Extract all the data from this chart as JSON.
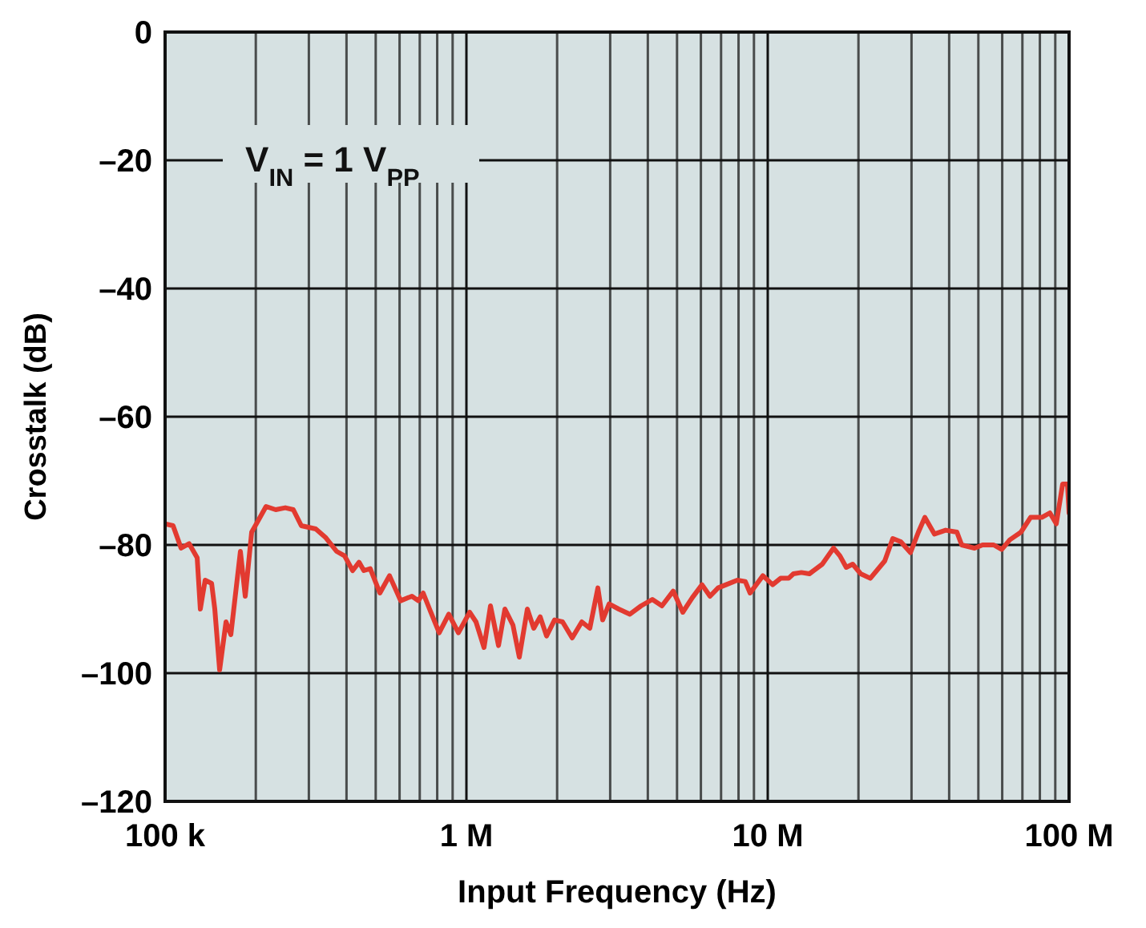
{
  "chart_data": {
    "type": "line",
    "xlabel": "Input Frequency (Hz)",
    "ylabel": "Crosstalk (dB)",
    "log": "x",
    "xlim": [
      100000,
      100000000
    ],
    "xticks": [
      {
        "value": 100000,
        "label": "100 k"
      },
      {
        "value": 1000000,
        "label": "1 M"
      },
      {
        "value": 10000000,
        "label": "10 M"
      },
      {
        "value": 100000000,
        "label": "100 M"
      }
    ],
    "ylim": [
      -120,
      0
    ],
    "yticks": [
      {
        "value": -120,
        "label": "–120"
      },
      {
        "value": -100,
        "label": "–100"
      },
      {
        "value": -80,
        "label": "–80"
      },
      {
        "value": -60,
        "label": "–60"
      },
      {
        "value": -40,
        "label": "–40"
      },
      {
        "value": -20,
        "label": "–20"
      },
      {
        "value": 0,
        "label": "0"
      }
    ],
    "grid": true,
    "line_style": "solid",
    "marker": "none",
    "annotations": [
      "V$_{IN}$ = 1 V$_{PP}$"
    ],
    "x": [
      100000,
      106300,
      113000,
      120200,
      127800,
      130900,
      135800,
      142700,
      146200,
      151700,
      159300,
      165300,
      177800,
      184500,
      193800,
      201000,
      216300,
      232800,
      250600,
      266400,
      283200,
      316200,
      340400,
      370800,
      394100,
      419200,
      440200,
      456700,
      479600,
      516300,
      555600,
      605100,
      659400,
      692500,
      718500,
      754500,
      812200,
      873900,
      940600,
      1025000,
      1076000,
      1144000,
      1202000,
      1278000,
      1342000,
      1427000,
      1498000,
      1593000,
      1673000,
      1757000,
      1845000,
      1961000,
      2085000,
      2244000,
      2415000,
      2568000,
      2731000,
      2832000,
      2975000,
      3202000,
      3488000,
      3800000,
      4140000,
      4456000,
      4856000,
      5225000,
      5623000,
      6051000,
      6433000,
      6842000,
      7273000,
      7924000,
      8424000,
      8739000,
      9638000,
      10380000,
      11030000,
      11730000,
      12170000,
      12930000,
      13750000,
      15170000,
      16530000,
      17360000,
      18220000,
      19140000,
      20350000,
      21900000,
      24450000,
      26000000,
      27640000,
      29750000,
      31620000,
      33210000,
      35750000,
      38940000,
      42440000,
      44020000,
      48560000,
      51630000,
      56230000,
      59780000,
      63580000,
      69250000,
      74520000,
      81220000,
      86360000,
      90700000,
      95210000,
      98790000,
      100000000
    ],
    "series": [
      {
        "color": "#e23a30",
        "values": [
          -76.7,
          -77,
          -80.5,
          -79.8,
          -82,
          -90,
          -85.5,
          -86,
          -90,
          -99.5,
          -92,
          -94,
          -81,
          -88,
          -78,
          -76.7,
          -74,
          -74.5,
          -74.2,
          -74.5,
          -77,
          -77.5,
          -78.8,
          -81,
          -81.7,
          -84,
          -82.7,
          -84,
          -83.7,
          -87.5,
          -84.8,
          -88.7,
          -88,
          -88.7,
          -87.5,
          -90,
          -93.7,
          -90.8,
          -93.7,
          -90.5,
          -92,
          -96,
          -89.5,
          -95.7,
          -90,
          -92.5,
          -97.5,
          -90,
          -93,
          -91.2,
          -94.2,
          -91.7,
          -92,
          -94.5,
          -92,
          -93,
          -86.7,
          -91.7,
          -89.2,
          -90,
          -90.8,
          -89.5,
          -88.5,
          -89.5,
          -87.2,
          -90.5,
          -88.2,
          -86.2,
          -88,
          -86.7,
          -86.2,
          -85.5,
          -85.7,
          -87.5,
          -84.8,
          -86.2,
          -85.2,
          -85.2,
          -84.5,
          -84.3,
          -84.5,
          -83,
          -80.5,
          -81.7,
          -83.5,
          -83,
          -84.5,
          -85.2,
          -82.5,
          -79,
          -79.5,
          -81.2,
          -78,
          -75.7,
          -78.3,
          -77.7,
          -78,
          -80,
          -80.5,
          -80,
          -80,
          -80.7,
          -79.2,
          -78,
          -75.7,
          -75.7,
          -75,
          -76.7,
          -70.5,
          -70.5,
          -75
        ]
      }
    ]
  }
}
